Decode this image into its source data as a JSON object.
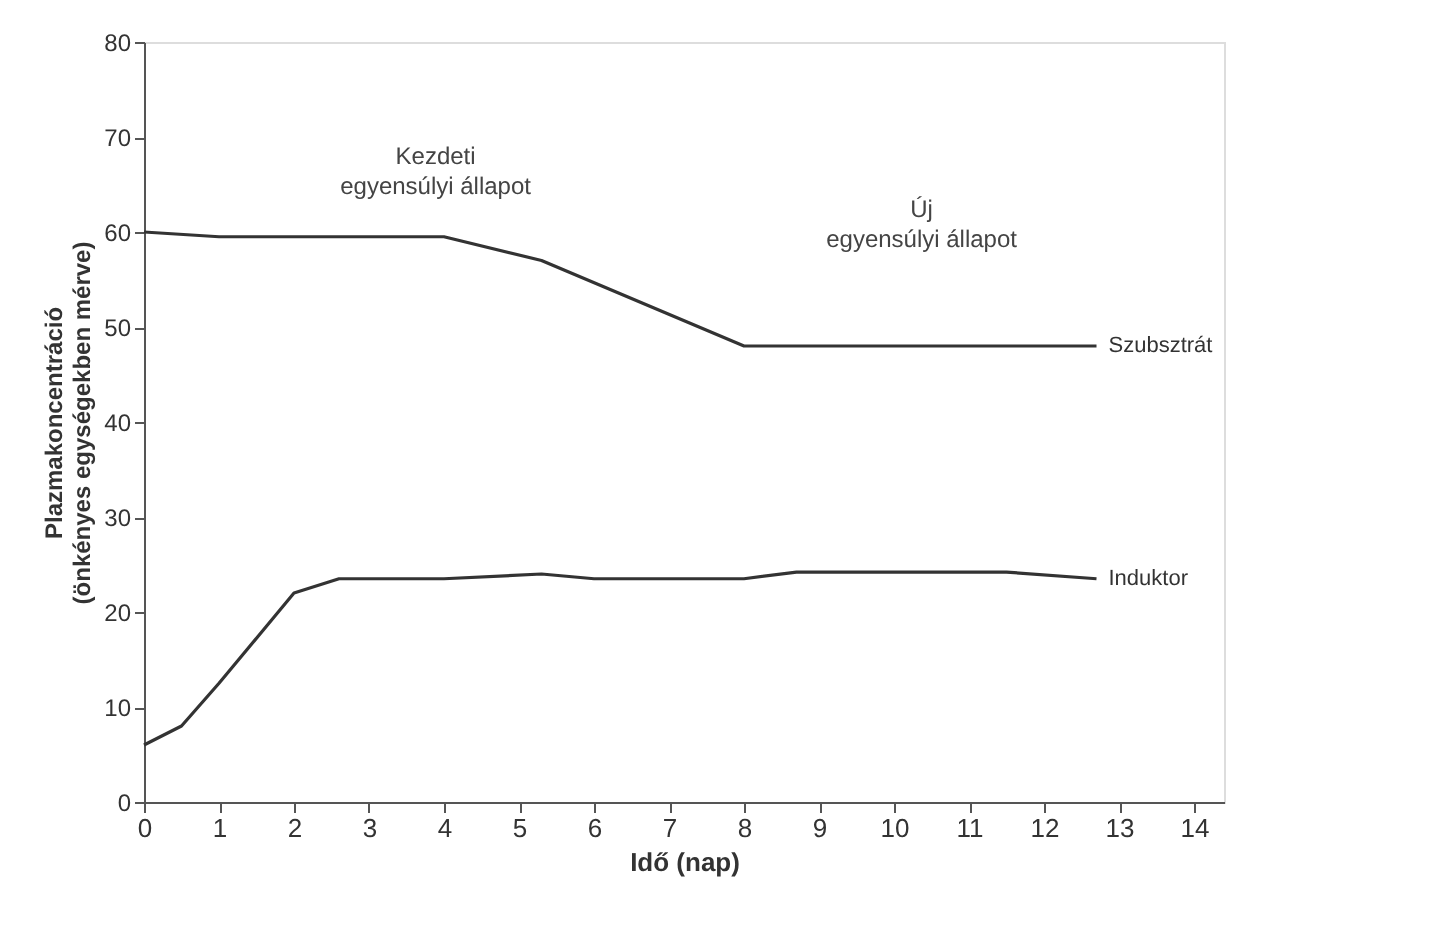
{
  "chart_data": {
    "type": "line",
    "xlabel": "Idő (nap)",
    "ylabel": "Plazmakoncentráció\n(önkényes egységekben mérve)",
    "xlim": [
      0,
      14.4
    ],
    "xticks": [
      0,
      1,
      2,
      3,
      4,
      5,
      6,
      7,
      8,
      9,
      10,
      11,
      12,
      13,
      14
    ],
    "ylim": [
      0,
      80
    ],
    "yticks": [
      0,
      10,
      20,
      30,
      40,
      50,
      60,
      70,
      80
    ],
    "grid": false,
    "legend": false,
    "marker": "none",
    "line_style": "solid",
    "series": [
      {
        "name": "Szubsztrát",
        "color": "#333333",
        "x": [
          0,
          1,
          4,
          5.3,
          6.2,
          8,
          12.7
        ],
        "values": [
          60,
          59.5,
          59.5,
          57,
          54,
          48,
          48
        ]
      },
      {
        "name": "Induktor",
        "color": "#333333",
        "x": [
          0,
          0.5,
          1,
          2,
          2.6,
          4,
          5.3,
          6,
          8,
          8.7,
          11.5,
          12.7
        ],
        "values": [
          6,
          8,
          12.5,
          22,
          23.5,
          23.5,
          24,
          23.5,
          23.5,
          24.2,
          24.2,
          23.5
        ]
      }
    ],
    "annotations": [
      "Kezdeti\negyensúlyi állapot",
      "Új\negyensúlyi állapot"
    ]
  }
}
